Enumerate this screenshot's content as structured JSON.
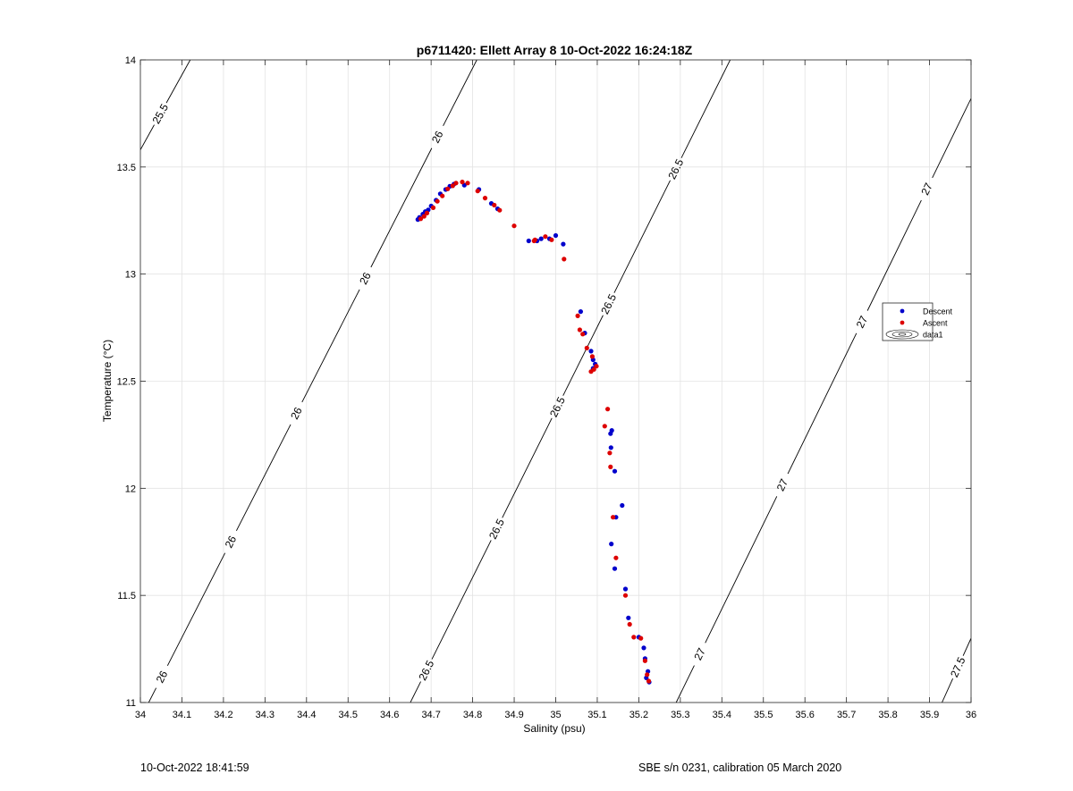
{
  "footer": {
    "left": "10-Oct-2022 18:41:59",
    "right": "SBE s/n 0231, calibration 05 March 2020"
  },
  "chart_data": {
    "type": "scatter",
    "title": "p6711420: Ellett Array 8 10-Oct-2022 16:24:18Z",
    "xlabel": "Salinity (psu)",
    "ylabel": "Temperature (°C)",
    "xlim": [
      34,
      36
    ],
    "ylim": [
      11,
      14
    ],
    "grid": true,
    "xticks": [
      "34",
      "34.1",
      "34.2",
      "34.3",
      "34.4",
      "34.5",
      "34.6",
      "34.7",
      "34.8",
      "34.9",
      "35",
      "35.1",
      "35.2",
      "35.3",
      "35.4",
      "35.5",
      "35.6",
      "35.7",
      "35.8",
      "35.9",
      "36"
    ],
    "yticks": [
      "11",
      "11.5",
      "12",
      "12.5",
      "13",
      "13.5",
      "14"
    ],
    "legend": {
      "placement": "right",
      "entries": [
        {
          "label": "Descent",
          "color": "#0000cc",
          "marker": "dot"
        },
        {
          "label": "Ascent",
          "color": "#dd0000",
          "marker": "dot"
        },
        {
          "label": "data1",
          "color": "#000000",
          "marker": "contour"
        }
      ]
    },
    "series": [
      {
        "name": "Descent",
        "color": "#0000cc",
        "points": [
          [
            34.668,
            13.255
          ],
          [
            34.672,
            13.265
          ],
          [
            34.68,
            13.28
          ],
          [
            34.686,
            13.292
          ],
          [
            34.693,
            13.3
          ],
          [
            34.7,
            13.318
          ],
          [
            34.712,
            13.345
          ],
          [
            34.722,
            13.375
          ],
          [
            34.735,
            13.395
          ],
          [
            34.745,
            13.41
          ],
          [
            34.755,
            13.42
          ],
          [
            34.78,
            13.415
          ],
          [
            34.815,
            13.395
          ],
          [
            34.845,
            13.33
          ],
          [
            34.86,
            13.305
          ],
          [
            34.935,
            13.155
          ],
          [
            34.955,
            13.155
          ],
          [
            34.965,
            13.165
          ],
          [
            34.985,
            13.165
          ],
          [
            35.0,
            13.18
          ],
          [
            35.018,
            13.14
          ],
          [
            35.06,
            12.825
          ],
          [
            35.07,
            12.725
          ],
          [
            35.085,
            12.64
          ],
          [
            35.09,
            12.6
          ],
          [
            35.095,
            12.58
          ],
          [
            35.09,
            12.56
          ],
          [
            35.132,
            12.255
          ],
          [
            35.135,
            12.27
          ],
          [
            35.133,
            12.19
          ],
          [
            35.142,
            12.08
          ],
          [
            35.16,
            11.92
          ],
          [
            35.145,
            11.865
          ],
          [
            35.134,
            11.74
          ],
          [
            35.142,
            11.625
          ],
          [
            35.168,
            11.53
          ],
          [
            35.175,
            11.395
          ],
          [
            35.2,
            11.305
          ],
          [
            35.212,
            11.255
          ],
          [
            35.215,
            11.205
          ],
          [
            35.222,
            11.145
          ],
          [
            35.218,
            11.115
          ],
          [
            35.225,
            11.095
          ]
        ]
      },
      {
        "name": "Ascent",
        "color": "#dd0000",
        "points": [
          [
            34.675,
            13.258
          ],
          [
            34.683,
            13.27
          ],
          [
            34.69,
            13.285
          ],
          [
            34.705,
            13.31
          ],
          [
            34.715,
            13.34
          ],
          [
            34.727,
            13.365
          ],
          [
            34.74,
            13.398
          ],
          [
            34.752,
            13.412
          ],
          [
            34.76,
            13.425
          ],
          [
            34.775,
            13.43
          ],
          [
            34.788,
            13.425
          ],
          [
            34.812,
            13.388
          ],
          [
            34.83,
            13.355
          ],
          [
            34.852,
            13.322
          ],
          [
            34.865,
            13.298
          ],
          [
            34.9,
            13.225
          ],
          [
            34.948,
            13.155
          ],
          [
            34.95,
            13.16
          ],
          [
            34.975,
            13.175
          ],
          [
            34.99,
            13.16
          ],
          [
            35.02,
            13.07
          ],
          [
            35.053,
            12.805
          ],
          [
            35.058,
            12.74
          ],
          [
            35.065,
            12.72
          ],
          [
            35.075,
            12.655
          ],
          [
            35.088,
            12.615
          ],
          [
            35.092,
            12.555
          ],
          [
            35.098,
            12.57
          ],
          [
            35.085,
            12.545
          ],
          [
            35.125,
            12.37
          ],
          [
            35.118,
            12.29
          ],
          [
            35.13,
            12.165
          ],
          [
            35.132,
            12.1
          ],
          [
            35.138,
            11.865
          ],
          [
            35.145,
            11.675
          ],
          [
            35.168,
            11.5
          ],
          [
            35.178,
            11.365
          ],
          [
            35.188,
            11.305
          ],
          [
            35.205,
            11.3
          ],
          [
            35.215,
            11.195
          ],
          [
            35.22,
            11.13
          ],
          [
            35.224,
            11.1
          ]
        ]
      }
    ],
    "contours": [
      {
        "level": "25.5",
        "labels": [
          "25.5"
        ]
      },
      {
        "level": "26",
        "labels": [
          "26",
          "26",
          "26",
          "26",
          "26"
        ]
      },
      {
        "level": "26.5",
        "labels": [
          "26.5",
          "26.5",
          "26.5",
          "26.5",
          "26.5"
        ]
      },
      {
        "level": "27",
        "labels": [
          "27",
          "27",
          "27",
          "27"
        ]
      },
      {
        "level": "27.5",
        "labels": [
          "27.5"
        ]
      }
    ]
  }
}
